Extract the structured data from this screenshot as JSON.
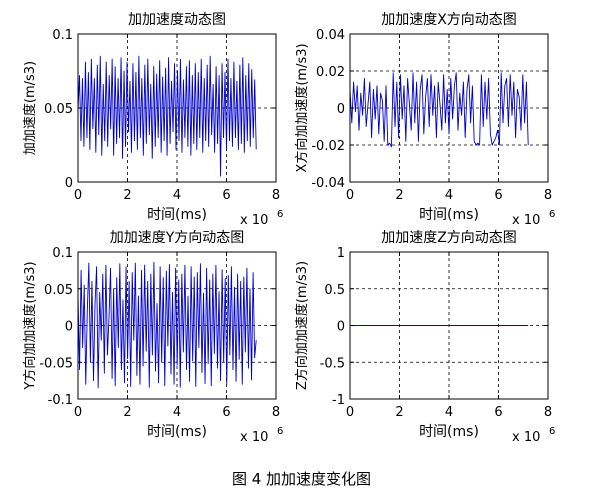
{
  "caption": "图 4  加加速度变化图",
  "chart_data": [
    {
      "type": "line",
      "title": "加加速度动态图",
      "xlabel": "时间(ms)",
      "ylabel": "加加速度(m/s3)",
      "x_exponent": "x 10",
      "x_exponent_power": "6",
      "xlim": [
        0,
        8
      ],
      "ylim": [
        0,
        0.1
      ],
      "xticks": [
        "0",
        "2",
        "4",
        "6",
        "8"
      ],
      "yticks": [
        "0",
        "0.05",
        "0.1"
      ],
      "grid": true,
      "line_color": "#0000cc",
      "series": [
        {
          "x_range": [
            0,
            7.2
          ],
          "values": [
            0.048,
            0.072,
            0.028,
            0.07,
            0.024,
            0.081,
            0.03,
            0.074,
            0.022,
            0.083,
            0.036,
            0.07,
            0.02,
            0.079,
            0.032,
            0.085,
            0.018,
            0.066,
            0.028,
            0.081,
            0.024,
            0.072,
            0.036,
            0.083,
            0.018,
            0.078,
            0.026,
            0.07,
            0.03,
            0.084,
            0.016,
            0.075,
            0.024,
            0.081,
            0.034,
            0.068,
            0.02,
            0.08,
            0.028,
            0.074,
            0.022,
            0.085,
            0.03,
            0.07,
            0.018,
            0.079,
            0.026,
            0.083,
            0.032,
            0.066,
            0.016,
            0.078,
            0.024,
            0.073,
            0.03,
            0.082,
            0.02,
            0.071,
            0.028,
            0.077,
            0.018,
            0.084,
            0.026,
            0.068,
            0.034,
            0.08,
            0.022,
            0.075,
            0.028,
            0.083,
            0.02,
            0.069,
            0.03,
            0.078,
            0.024,
            0.082,
            0.018,
            0.072,
            0.026,
            0.08,
            0.022,
            0.074,
            0.03,
            0.083,
            0.02,
            0.07,
            0.028,
            0.079,
            0.024,
            0.085,
            0.032,
            0.066,
            0.02,
            0.078,
            0.026,
            0.072,
            0.004,
            0.08,
            0.03,
            0.074,
            0.022,
            0.083,
            0.028,
            0.07,
            0.024,
            0.081,
            0.03,
            0.068,
            0.022,
            0.079,
            0.026,
            0.084,
            0.02,
            0.072,
            0.028,
            0.08,
            0.024,
            0.076,
            0.03,
            0.069,
            0.022
          ]
        }
      ]
    },
    {
      "type": "line",
      "title": "加加速度X方向动态图",
      "xlabel": "时间(ms)",
      "ylabel": "X方向加加速度(m/s3)",
      "x_exponent": "x 10",
      "x_exponent_power": "6",
      "xlim": [
        0,
        8
      ],
      "ylim": [
        -0.04,
        0.04
      ],
      "xticks": [
        "0",
        "2",
        "4",
        "6",
        "8"
      ],
      "yticks": [
        "-0.04",
        "-0.02",
        "0",
        "0.02",
        "0.04"
      ],
      "grid": true,
      "line_color": "#0000cc",
      "series": [
        {
          "x_range": [
            0,
            7.2
          ],
          "values": [
            0.01,
            -0.008,
            0.014,
            -0.002,
            0.012,
            -0.012,
            0.008,
            -0.004,
            0.016,
            -0.01,
            0.002,
            0.014,
            -0.016,
            0.01,
            -0.006,
            0.012,
            -0.014,
            0.008,
            0.004,
            -0.018,
            0.012,
            -0.02,
            -0.019,
            -0.021,
            0.019,
            -0.01,
            0.014,
            -0.016,
            0.018,
            -0.006,
            0.012,
            -0.018,
            0.016,
            0.002,
            -0.012,
            0.019,
            -0.008,
            0.014,
            -0.018,
            0.01,
            0.018,
            -0.014,
            0.006,
            0.016,
            -0.01,
            0.018,
            -0.004,
            0.012,
            -0.016,
            0.014,
            0.002,
            -0.012,
            0.018,
            -0.008,
            0.01,
            -0.014,
            0.016,
            -0.006,
            0.012,
            0.019,
            -0.012,
            0.008,
            -0.004,
            0.014,
            -0.016,
            0.01,
            0.018,
            -0.008,
            0.012,
            -0.018,
            -0.02,
            -0.019,
            -0.02,
            0.018,
            -0.01,
            0.014,
            -0.006,
            0.016,
            -0.014,
            -0.02,
            -0.018,
            -0.016,
            -0.012,
            -0.02,
            0.019,
            -0.008,
            0.012,
            0.016,
            -0.01,
            0.018,
            -0.004,
            0.014,
            -0.016,
            0.01,
            0.006,
            -0.012,
            0.018,
            -0.008,
            0.014,
            -0.02
          ]
        }
      ]
    },
    {
      "type": "line",
      "title": "加加速度Y方向动态图",
      "xlabel": "时间(ms)",
      "ylabel": "Y方向加加速度(m/s3)",
      "x_exponent": "x 10",
      "x_exponent_power": "6",
      "xlim": [
        0,
        8
      ],
      "ylim": [
        -0.1,
        0.1
      ],
      "xticks": [
        "0",
        "2",
        "4",
        "6",
        "8"
      ],
      "yticks": [
        "-0.1",
        "-0.05",
        "0",
        "0.05",
        "0.1"
      ],
      "grid": true,
      "line_color": "#0000cc",
      "series": [
        {
          "x_range": [
            0,
            7.2
          ],
          "values": [
            0.04,
            -0.06,
            0.075,
            -0.03,
            0.055,
            -0.08,
            0.02,
            0.085,
            -0.05,
            0.06,
            -0.075,
            0.03,
            0.08,
            -0.085,
            0.045,
            -0.02,
            0.07,
            -0.065,
            0.082,
            -0.04,
            0.01,
            0.078,
            -0.072,
            0.05,
            -0.082,
            0.065,
            -0.03,
            0.084,
            -0.06,
            0.035,
            -0.078,
            0.08,
            -0.045,
            0.06,
            -0.083,
            0.072,
            -0.02,
            0.085,
            -0.068,
            0.04,
            -0.08,
            0.075,
            -0.055,
            0.082,
            -0.035,
            0.06,
            -0.084,
            0.07,
            -0.04,
            0.086,
            -0.062,
            0.03,
            -0.078,
            0.08,
            -0.05,
            0.065,
            -0.082,
            0.074,
            -0.028,
            0.083,
            -0.066,
            0.045,
            -0.08,
            0.078,
            -0.054,
            0.062,
            -0.084,
            0.07,
            -0.036,
            0.082,
            -0.06,
            0.04,
            -0.076,
            0.08,
            -0.048,
            0.066,
            -0.083,
            0.072,
            -0.03,
            0.084,
            -0.064,
            0.044,
            -0.079,
            0.078,
            -0.052,
            0.062,
            -0.082,
            0.07,
            -0.038,
            0.082,
            -0.058,
            0.046,
            -0.075,
            0.076,
            -0.05,
            0.064,
            -0.08,
            0.068,
            -0.04,
            0.08,
            -0.06,
            0.052,
            -0.076,
            0.07,
            -0.046,
            0.06,
            -0.08,
            0.066,
            -0.036,
            0.078,
            -0.058,
            0.05,
            -0.074,
            0.072,
            -0.044,
            -0.02
          ]
        }
      ]
    },
    {
      "type": "line",
      "title": "加加速度Z方向动态图",
      "xlabel": "时间(ms)",
      "ylabel": "Z方向加加速度(m/s3)",
      "x_exponent": "x 10",
      "x_exponent_power": "6",
      "xlim": [
        0,
        8
      ],
      "ylim": [
        -1,
        1
      ],
      "xticks": [
        "0",
        "2",
        "4",
        "6",
        "8"
      ],
      "yticks": [
        "-1",
        "-0.5",
        "0",
        "0.5",
        "1"
      ],
      "grid": true,
      "line_color": "#0000cc",
      "series": [
        {
          "x_range": [
            0,
            7.2
          ],
          "values": [
            0,
            0
          ]
        }
      ]
    }
  ]
}
